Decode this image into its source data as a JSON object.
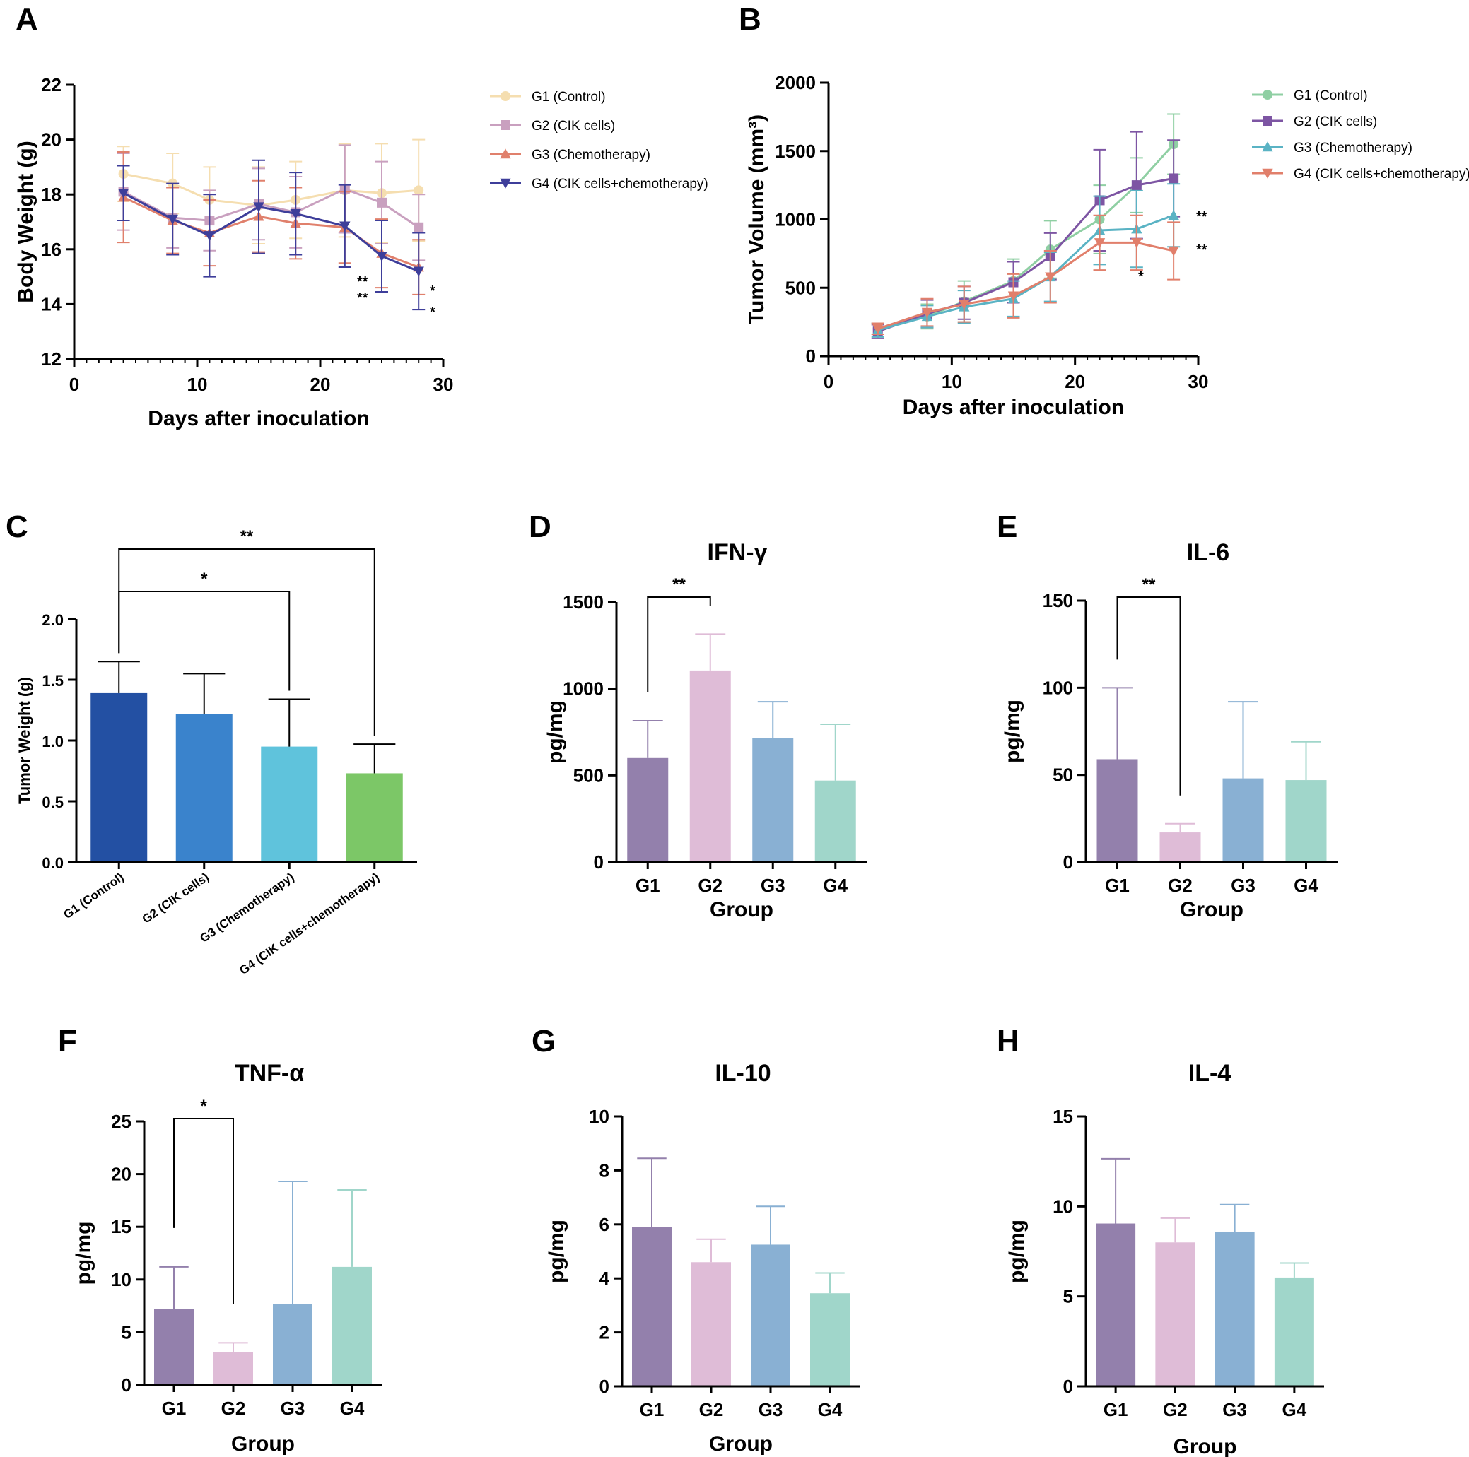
{
  "chart_data": [
    {
      "panel": "A",
      "type": "line",
      "xlabel": "Days after inoculation",
      "ylabel": "Body Weight (g)",
      "xlim": [
        0,
        30
      ],
      "ylim": [
        12,
        22
      ],
      "xticks": [
        "0",
        "10",
        "20",
        "30"
      ],
      "yticks": [
        "12",
        "14",
        "16",
        "18",
        "20",
        "22"
      ],
      "x": [
        4,
        8,
        11,
        15,
        18,
        22,
        25,
        28
      ],
      "series": [
        {
          "name": "G1 (Control)",
          "color": "#f5deb0",
          "marker": "circle",
          "values": [
            18.75,
            18.4,
            17.8,
            17.6,
            17.8,
            18.15,
            18.05,
            18.15
          ],
          "errors": [
            1.0,
            1.1,
            1.2,
            1.4,
            1.4,
            1.7,
            1.8,
            1.85
          ]
        },
        {
          "name": "G2 (CIK cells)",
          "color": "#c9a0bf",
          "marker": "square",
          "values": [
            18.1,
            17.15,
            17.05,
            17.65,
            17.35,
            18.2,
            17.7,
            16.8
          ],
          "errors": [
            1.4,
            1.1,
            1.1,
            1.3,
            1.3,
            1.6,
            1.5,
            1.2
          ]
        },
        {
          "name": "G3 (Chemotherapy)",
          "color": "#e0806c",
          "marker": "triangle-up",
          "values": [
            17.9,
            17.05,
            16.6,
            17.2,
            16.95,
            16.8,
            15.85,
            15.35
          ],
          "errors": [
            1.65,
            1.2,
            1.2,
            1.3,
            1.3,
            1.3,
            1.25,
            1.0
          ]
        },
        {
          "name": "G4 (CIK cells+chemotherapy)",
          "color": "#3e3e9a",
          "marker": "triangle-down",
          "values": [
            18.05,
            17.1,
            16.5,
            17.55,
            17.3,
            16.85,
            15.75,
            15.2
          ],
          "errors": [
            1.0,
            1.3,
            1.5,
            1.7,
            1.5,
            1.5,
            1.3,
            1.4
          ]
        }
      ],
      "annotations": [
        "**",
        "**",
        "*",
        "*"
      ]
    },
    {
      "panel": "B",
      "type": "line",
      "xlabel": "Days after inoculation",
      "ylabel": "Tumor Volume (mm³)",
      "xlim": [
        0,
        30
      ],
      "ylim": [
        0,
        2000
      ],
      "xticks": [
        "0",
        "10",
        "20",
        "30"
      ],
      "yticks": [
        "0",
        "500",
        "1000",
        "1500",
        "2000"
      ],
      "x": [
        4,
        8,
        11,
        15,
        18,
        22,
        25,
        28
      ],
      "series": [
        {
          "name": "G1 (Control)",
          "color": "#8fcfa3",
          "marker": "circle",
          "values": [
            200,
            290,
            400,
            550,
            780,
            1000,
            1250,
            1550
          ],
          "errors": [
            40,
            90,
            150,
            160,
            210,
            250,
            200,
            220
          ]
        },
        {
          "name": "G2 (CIK cells)",
          "color": "#7d55a3",
          "marker": "square",
          "values": [
            180,
            310,
            390,
            540,
            730,
            1140,
            1250,
            1300
          ],
          "errors": [
            50,
            100,
            120,
            150,
            170,
            370,
            390,
            280
          ]
        },
        {
          "name": "G3 (Chemotherapy)",
          "color": "#5ab3c4",
          "marker": "triangle-up",
          "values": [
            190,
            290,
            360,
            420,
            580,
            920,
            930,
            1030
          ],
          "errors": [
            50,
            80,
            120,
            130,
            180,
            250,
            280,
            230
          ]
        },
        {
          "name": "G4 (CIK cells+chemotherapy)",
          "color": "#e17f6b",
          "marker": "triangle-down",
          "values": [
            200,
            320,
            380,
            440,
            580,
            830,
            830,
            770
          ],
          "errors": [
            40,
            100,
            130,
            160,
            190,
            200,
            200,
            210
          ]
        }
      ],
      "annotations": [
        "**",
        "**",
        "*"
      ]
    },
    {
      "panel": "C",
      "type": "bar",
      "xlabel": "",
      "ylabel": "Tumor Weight (g)",
      "ylim": [
        0,
        2.0
      ],
      "yticks": [
        "0.0",
        "0.5",
        "1.0",
        "1.5",
        "2.0"
      ],
      "categories": [
        "G1 (Control)",
        "G2 (CIK cells)",
        "G3 (Chemotherapy)",
        "G4 (CIK cells+chemotherapy)"
      ],
      "values": [
        1.39,
        1.22,
        0.95,
        0.73
      ],
      "errors": [
        0.26,
        0.33,
        0.39,
        0.24
      ],
      "colors": [
        "#2350a3",
        "#3a83cc",
        "#5fc3dc",
        "#7cc767"
      ],
      "significance": [
        {
          "from": 0,
          "to": 2,
          "label": "*"
        },
        {
          "from": 0,
          "to": 3,
          "label": "**"
        }
      ]
    },
    {
      "panel": "D",
      "type": "bar",
      "title": "IFN-γ",
      "xlabel": "Group",
      "ylabel": "pg/mg",
      "ylim": [
        0,
        1500
      ],
      "yticks": [
        "0",
        "500",
        "1000",
        "1500"
      ],
      "categories": [
        "G1",
        "G2",
        "G3",
        "G4"
      ],
      "values": [
        600,
        1105,
        715,
        470
      ],
      "errors": [
        215,
        210,
        210,
        325
      ],
      "colors": [
        "#9380ac",
        "#dfbcd7",
        "#89b0d3",
        "#a0d6ca"
      ],
      "significance": [
        {
          "from": 0,
          "to": 1,
          "label": "**"
        }
      ]
    },
    {
      "panel": "E",
      "type": "bar",
      "title": "IL-6",
      "xlabel": "Group",
      "ylabel": "pg/mg",
      "ylim": [
        0,
        150
      ],
      "yticks": [
        "0",
        "50",
        "100",
        "150"
      ],
      "categories": [
        "G1",
        "G2",
        "G3",
        "G4"
      ],
      "values": [
        59,
        17,
        48,
        47
      ],
      "errors": [
        41,
        5,
        44,
        22
      ],
      "colors": [
        "#9380ac",
        "#dfbcd7",
        "#89b0d3",
        "#a0d6ca"
      ],
      "significance": [
        {
          "from": 0,
          "to": 1,
          "label": "**"
        }
      ]
    },
    {
      "panel": "F",
      "type": "bar",
      "title": "TNF-α",
      "xlabel": "Group",
      "ylabel": "pg/mg",
      "ylim": [
        0,
        25
      ],
      "yticks": [
        "0",
        "5",
        "10",
        "15",
        "20",
        "25"
      ],
      "categories": [
        "G1",
        "G2",
        "G3",
        "G4"
      ],
      "values": [
        7.2,
        3.1,
        7.7,
        11.2
      ],
      "errors": [
        4.0,
        0.9,
        11.6,
        7.3
      ],
      "colors": [
        "#9380ac",
        "#dfbcd7",
        "#89b0d3",
        "#a0d6ca"
      ],
      "significance": [
        {
          "from": 0,
          "to": 1,
          "label": "*"
        }
      ]
    },
    {
      "panel": "G",
      "type": "bar",
      "title": "IL-10",
      "xlabel": "Group",
      "ylabel": "pg/mg",
      "ylim": [
        0,
        10
      ],
      "yticks": [
        "0",
        "2",
        "4",
        "6",
        "8",
        "10"
      ],
      "categories": [
        "G1",
        "G2",
        "G3",
        "G4"
      ],
      "values": [
        5.9,
        4.6,
        5.25,
        3.45
      ],
      "errors": [
        2.55,
        0.85,
        1.42,
        0.75
      ],
      "colors": [
        "#9380ac",
        "#dfbcd7",
        "#89b0d3",
        "#a0d6ca"
      ],
      "significance": []
    },
    {
      "panel": "H",
      "type": "bar",
      "title": "IL-4",
      "xlabel": "Group",
      "ylabel": "pg/mg",
      "ylim": [
        0,
        15
      ],
      "yticks": [
        "0",
        "5",
        "10",
        "15"
      ],
      "categories": [
        "G1",
        "G2",
        "G3",
        "G4"
      ],
      "values": [
        9.05,
        8.0,
        8.6,
        6.05
      ],
      "errors": [
        3.6,
        1.35,
        1.5,
        0.8
      ],
      "colors": [
        "#9380ac",
        "#dfbcd7",
        "#89b0d3",
        "#a0d6ca"
      ],
      "significance": []
    }
  ]
}
